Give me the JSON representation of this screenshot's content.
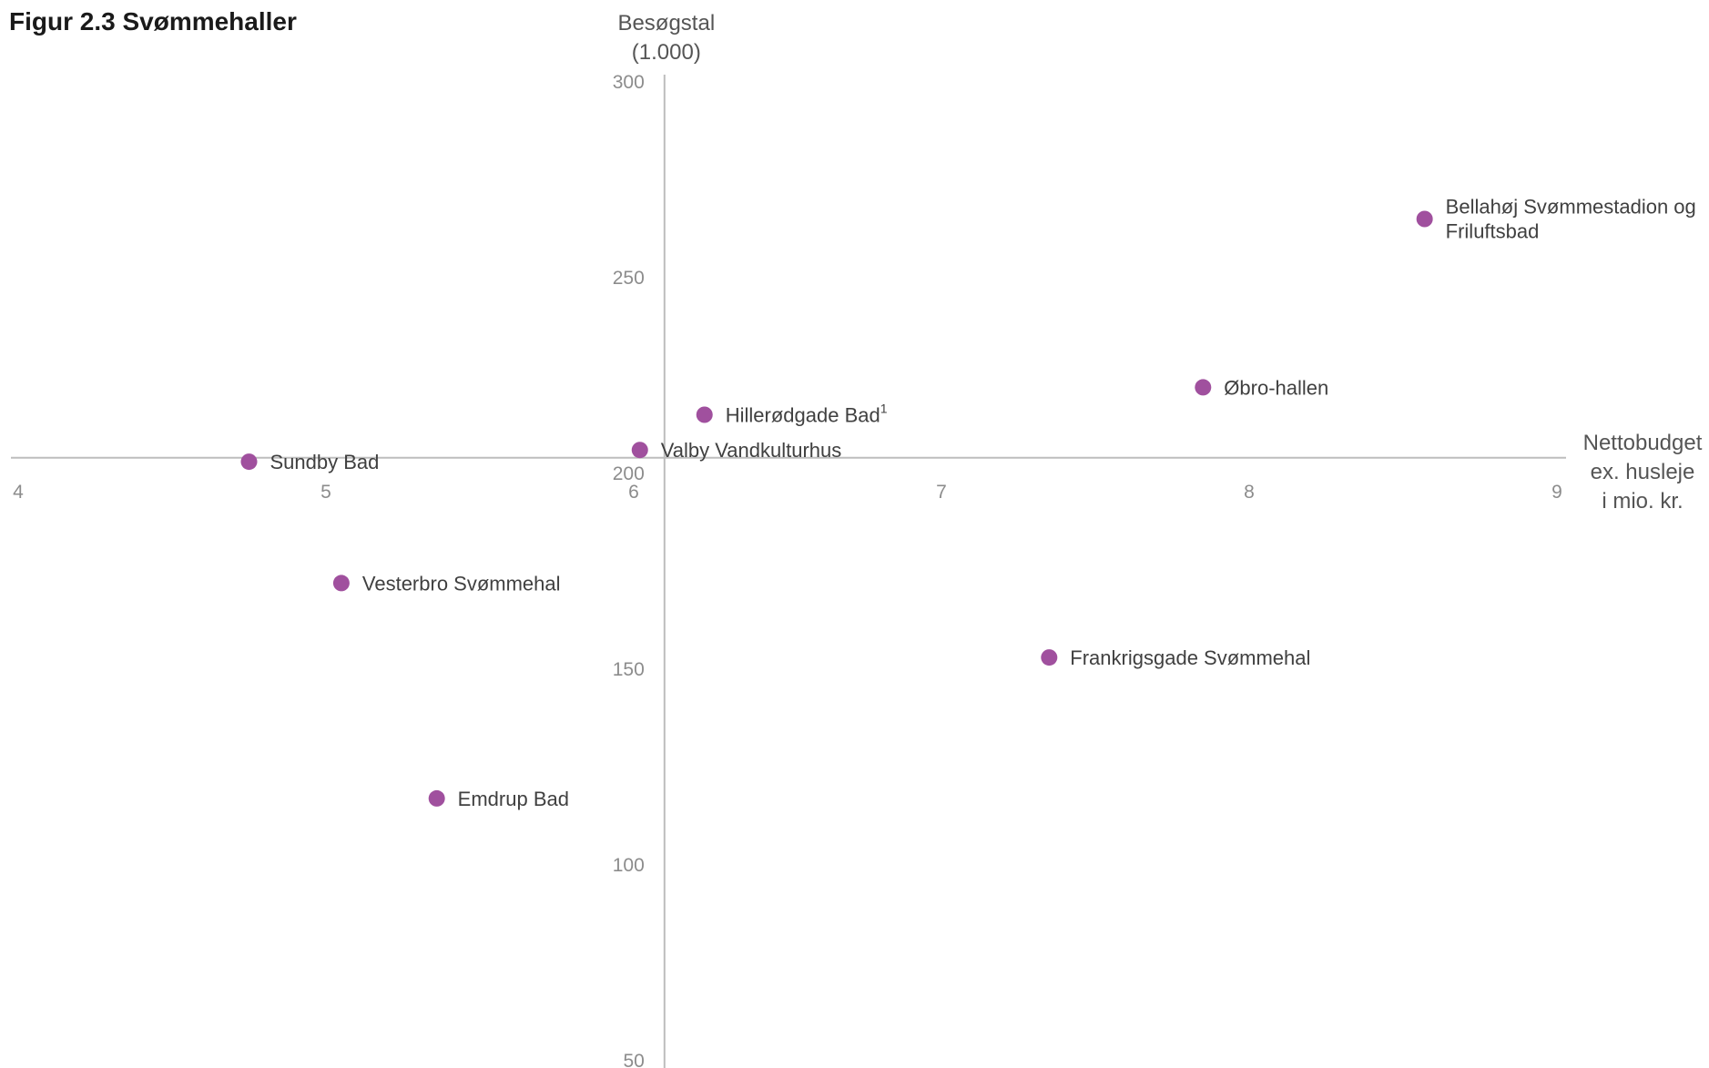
{
  "title": "Figur 2.3 Svømmehaller",
  "chart_data": {
    "type": "scatter",
    "title": "Figur 2.3 Svømmehaller",
    "ylabel": [
      "Besøgstal",
      "(1.000)"
    ],
    "xlabel": [
      "Nettobudget",
      "ex. husleje",
      "i mio. kr."
    ],
    "xlim": [
      4,
      9
    ],
    "ylim": [
      50,
      300
    ],
    "x_ticks": [
      "4",
      "5",
      "6",
      "7",
      "8",
      "9"
    ],
    "y_ticks": [
      "300",
      "250",
      "200",
      "150",
      "100",
      "50"
    ],
    "x_axis_crosses_y": 204,
    "y_axis_crosses_x": 6.1,
    "marker_color": "#a0509e",
    "points": [
      {
        "label": [
          "Bellahøj Svømmestadion og",
          "Friluftsbad"
        ],
        "x": 8.57,
        "y": 265
      },
      {
        "label": [
          "Øbro-hallen"
        ],
        "x": 7.85,
        "y": 222
      },
      {
        "label": [
          "Hillerødgade Bad"
        ],
        "sup": "1",
        "x": 6.23,
        "y": 215
      },
      {
        "label": [
          "Valby Vandkulturhus"
        ],
        "x": 6.02,
        "y": 206
      },
      {
        "label": [
          "Sundby Bad"
        ],
        "x": 4.75,
        "y": 203
      },
      {
        "label": [
          "Vesterbro Svømmehal"
        ],
        "x": 5.05,
        "y": 172
      },
      {
        "label": [
          "Frankrigsgade Svømmehal"
        ],
        "x": 7.35,
        "y": 153
      },
      {
        "label": [
          "Emdrup Bad"
        ],
        "x": 5.36,
        "y": 117
      }
    ]
  }
}
